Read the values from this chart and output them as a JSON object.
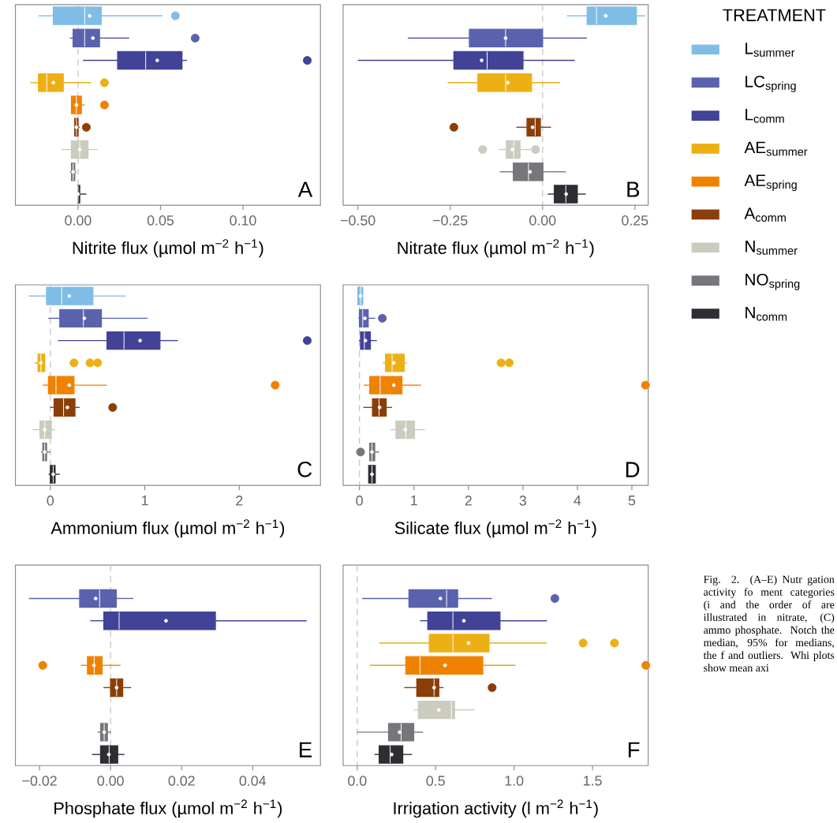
{
  "chart_data": [
    {
      "type": "box",
      "orientation": "horizontal",
      "tick_labels": "x",
      "legend": "right",
      "legend_title": "TREATMENT",
      "categories": [
        null,
        null,
        null,
        null,
        null,
        null,
        null,
        null,
        null
      ],
      "series": [
        {
          "name": "L$_{summer}$",
          "color": "#7fbde6",
          "boxes": [
            {
              "low": -0.024,
              "q1": -0.015,
              "median": 0.004,
              "q3": 0.014,
              "high": 0.051,
              "mean": 0.007,
              "outliers": [
                0.059
              ]
            },
            null,
            null,
            null,
            null,
            null,
            null,
            null,
            null
          ]
        },
        {
          "name": "LC$_{spring}$",
          "color": "#5a62ae",
          "boxes": [
            null,
            {
              "low": -0.005,
              "q1": -0.003,
              "median": 0.004,
              "q3": 0.013,
              "high": 0.031,
              "mean": 0.009,
              "outliers": [
                0.071
              ]
            },
            null,
            null,
            null,
            null,
            null,
            null,
            null
          ]
        },
        {
          "name": "L$_{comm}$",
          "color": "#424297",
          "boxes": [
            null,
            null,
            {
              "low": 0.003,
              "q1": 0.024,
              "median": 0.041,
              "q3": 0.063,
              "high": 0.066,
              "mean": 0.048,
              "outliers": [
                0.139
              ]
            },
            null,
            null,
            null,
            null,
            null,
            null
          ]
        },
        {
          "name": "AE$_{summer}$",
          "color": "#ecb015",
          "boxes": [
            null,
            null,
            null,
            {
              "low": -0.029,
              "q1": -0.024,
              "median": -0.019,
              "q3": -0.009,
              "high": 0.008,
              "mean": -0.015,
              "outliers": [
                0.016
              ]
            },
            null,
            null,
            null,
            null,
            null
          ]
        },
        {
          "name": "AE$_{spring}$",
          "color": "#ef8200",
          "boxes": [
            null,
            null,
            null,
            null,
            {
              "low": -0.004,
              "q1": -0.004,
              "median": -0.001,
              "q3": 0.002,
              "high": 0.004,
              "mean": -0.001,
              "outliers": [
                0.016
              ]
            },
            null,
            null,
            null,
            null
          ]
        },
        {
          "name": "A$_{comm}$",
          "color": "#8b3e08",
          "boxes": [
            null,
            null,
            null,
            null,
            null,
            {
              "low": -0.002,
              "q1": -0.002,
              "median": -0.001,
              "q3": 0.0,
              "high": 0.001,
              "mean": -0.001,
              "outliers": [
                0.005
              ]
            },
            null,
            null,
            null
          ]
        },
        {
          "name": "N$_{summer}$",
          "color": "#cbcbbf",
          "boxes": [
            null,
            null,
            null,
            null,
            null,
            null,
            {
              "low": -0.01,
              "q1": -0.004,
              "median": 0.001,
              "q3": 0.006,
              "high": 0.012,
              "mean": 0.001
            },
            null,
            null
          ]
        },
        {
          "name": "NO$_{spring}$",
          "color": "#77767b",
          "boxes": [
            null,
            null,
            null,
            null,
            null,
            null,
            null,
            {
              "low": -0.005,
              "q1": -0.004,
              "median": -0.003,
              "q3": -0.002,
              "high": -0.001,
              "mean": -0.003
            },
            null
          ]
        },
        {
          "name": "N$_{comm}$",
          "color": "#2e2d33",
          "boxes": [
            null,
            null,
            null,
            null,
            null,
            null,
            null,
            null,
            {
              "low": -0.001,
              "q1": 0.0,
              "median": 0.0,
              "q3": 0.001,
              "high": 0.005,
              "mean": 0.0
            }
          ]
        }
      ],
      "xlim": [
        -0.038,
        0.147
      ],
      "xticks": [
        {
          "value": 0,
          "label": "0.00"
        },
        {
          "value": 0.05,
          "label": "0.05"
        },
        {
          "value": 0.1,
          "label": "0.10"
        }
      ],
      "xlabel": "Nitrite flux (µmol m$^{−2}$ h$^{−1}$)",
      "ref_lines": [
        {
          "axis": "x",
          "value": 0,
          "line_style": "dashed",
          "color": "#c8c8c8"
        }
      ],
      "annotations": [
        "A"
      ]
    },
    {
      "type": "box",
      "orientation": "horizontal",
      "tick_labels": "x",
      "categories": [
        null,
        null,
        null,
        null,
        null,
        null,
        null,
        null,
        null
      ],
      "series": [
        {
          "color": "#7fbde6",
          "boxes": [
            {
              "low": 0.066,
              "q1": 0.121,
              "median": 0.146,
              "q3": 0.254,
              "high": 0.278,
              "mean": 0.171
            },
            null,
            null,
            null,
            null,
            null,
            null,
            null,
            null
          ]
        },
        {
          "color": "#5a62ae",
          "boxes": [
            null,
            {
              "low": -0.365,
              "q1": -0.198,
              "median": -0.1,
              "q3": 0.0,
              "high": 0.12,
              "mean": -0.1
            },
            null,
            null,
            null,
            null,
            null,
            null,
            null
          ]
        },
        {
          "color": "#424297",
          "boxes": [
            null,
            null,
            {
              "low": -0.5,
              "q1": -0.24,
              "median": -0.15,
              "q3": -0.053,
              "high": 0.087,
              "mean": -0.165
            },
            null,
            null,
            null,
            null,
            null,
            null
          ]
        },
        {
          "color": "#ecb015",
          "boxes": [
            null,
            null,
            null,
            {
              "low": -0.257,
              "q1": -0.175,
              "median": -0.1,
              "q3": -0.03,
              "high": 0.047,
              "mean": -0.094
            },
            null,
            null,
            null,
            null,
            null
          ]
        },
        {
          "color": "#8b3e08",
          "boxes": [
            null,
            null,
            null,
            null,
            null,
            {
              "low": -0.071,
              "q1": -0.042,
              "median": -0.02,
              "q3": -0.006,
              "high": 0.023,
              "mean": -0.027,
              "outliers": [
                -0.24
              ]
            },
            null,
            null,
            null
          ]
        },
        {
          "color": "#cbcbbf",
          "boxes": [
            null,
            null,
            null,
            null,
            null,
            null,
            {
              "low": -0.12,
              "q1": -0.098,
              "median": -0.078,
              "q3": -0.061,
              "high": -0.031,
              "mean": -0.082,
              "outliers": [
                -0.162,
                -0.019
              ]
            },
            null,
            null
          ]
        },
        {
          "color": "#77767b",
          "boxes": [
            null,
            null,
            null,
            null,
            null,
            null,
            null,
            {
              "low": -0.116,
              "q1": -0.079,
              "median": -0.038,
              "q3": 0.001,
              "high": 0.063,
              "mean": -0.034
            },
            null
          ]
        },
        {
          "color": "#2e2d33",
          "boxes": [
            null,
            null,
            null,
            null,
            null,
            null,
            null,
            null,
            {
              "low": 0.014,
              "q1": 0.032,
              "median": 0.063,
              "q3": 0.094,
              "high": 0.117,
              "mean": 0.064
            }
          ]
        }
      ],
      "xlim": [
        -0.54,
        0.286
      ],
      "xticks": [
        {
          "value": -0.5,
          "label": "−0.50"
        },
        {
          "value": -0.25,
          "label": "−0.25"
        },
        {
          "value": 0,
          "label": "0.00"
        },
        {
          "value": 0.25,
          "label": "0.25"
        }
      ],
      "xlabel": "Nitrate flux (µmol m$^{−2}$ h$^{−1}$)",
      "ref_lines": [
        {
          "axis": "x",
          "value": 0,
          "line_style": "dashed",
          "color": "#c8c8c8"
        }
      ],
      "annotations": [
        "B"
      ]
    },
    {
      "type": "box",
      "orientation": "horizontal",
      "tick_labels": "x",
      "categories": [
        null,
        null,
        null,
        null,
        null,
        null,
        null,
        null,
        null
      ],
      "series": [
        {
          "color": "#7fbde6",
          "boxes": [
            {
              "low": -0.23,
              "q1": -0.04,
              "median": 0.12,
              "q3": 0.45,
              "high": 0.8,
              "mean": 0.2
            },
            null,
            null,
            null,
            null,
            null,
            null,
            null,
            null
          ]
        },
        {
          "color": "#5a62ae",
          "boxes": [
            null,
            {
              "low": -0.02,
              "q1": 0.1,
              "median": 0.35,
              "q3": 0.54,
              "high": 1.03,
              "mean": 0.36
            },
            null,
            null,
            null,
            null,
            null,
            null,
            null
          ]
        },
        {
          "color": "#424297",
          "boxes": [
            null,
            null,
            {
              "low": 0.08,
              "q1": 0.6,
              "median": 0.78,
              "q3": 1.16,
              "high": 1.35,
              "mean": 0.95,
              "outliers": [
                2.72
              ]
            },
            null,
            null,
            null,
            null,
            null,
            null
          ]
        },
        {
          "color": "#ecb015",
          "boxes": [
            null,
            null,
            null,
            {
              "low": -0.17,
              "q1": -0.13,
              "median": -0.1,
              "q3": -0.06,
              "high": -0.06,
              "mean": -0.1,
              "outliers": [
                0.25,
                0.42,
                0.5
              ]
            },
            null,
            null,
            null,
            null,
            null
          ]
        },
        {
          "color": "#ef8200",
          "boxes": [
            null,
            null,
            null,
            null,
            {
              "low": -0.08,
              "q1": -0.02,
              "median": 0.06,
              "q3": 0.25,
              "high": 0.6,
              "mean": 0.2,
              "outliers": [
                2.38
              ]
            },
            null,
            null,
            null,
            null
          ]
        },
        {
          "color": "#8b3e08",
          "boxes": [
            null,
            null,
            null,
            null,
            null,
            {
              "low": 0.0,
              "q1": 0.04,
              "median": 0.14,
              "q3": 0.26,
              "high": 0.31,
              "mean": 0.18,
              "outliers": [
                0.66
              ]
            },
            null,
            null,
            null
          ]
        },
        {
          "color": "#cbcbbf",
          "boxes": [
            null,
            null,
            null,
            null,
            null,
            null,
            {
              "low": -0.19,
              "q1": -0.11,
              "median": -0.06,
              "q3": 0.01,
              "high": 0.05,
              "mean": -0.06
            },
            null,
            null
          ]
        },
        {
          "color": "#77767b",
          "boxes": [
            null,
            null,
            null,
            null,
            null,
            null,
            null,
            {
              "low": -0.1,
              "q1": -0.08,
              "median": -0.06,
              "q3": -0.04,
              "high": 0.0,
              "mean": -0.06
            },
            null
          ]
        },
        {
          "color": "#2e2d33",
          "boxes": [
            null,
            null,
            null,
            null,
            null,
            null,
            null,
            null,
            {
              "low": -0.02,
              "q1": 0.0,
              "median": 0.03,
              "q3": 0.05,
              "high": 0.1,
              "mean": 0.03
            }
          ]
        }
      ],
      "xlim": [
        -0.37,
        2.86
      ],
      "xticks": [
        0,
        1,
        2
      ],
      "xlabel": "Ammonium flux (µmol m$^{−2}$ h$^{−1}$)",
      "ref_lines": [
        {
          "axis": "x",
          "value": 0,
          "line_style": "dashed",
          "color": "#c8c8c8"
        }
      ],
      "annotations": [
        "C"
      ]
    },
    {
      "type": "box",
      "orientation": "horizontal",
      "tick_labels": "x",
      "categories": [
        null,
        null,
        null,
        null,
        null,
        null,
        null,
        null,
        null
      ],
      "series": [
        {
          "color": "#7fbde6",
          "boxes": [
            {
              "low": -0.03,
              "q1": -0.03,
              "median": 0.02,
              "q3": 0.06,
              "high": 0.06,
              "mean": 0.02
            },
            null,
            null,
            null,
            null,
            null,
            null,
            null,
            null
          ]
        },
        {
          "color": "#5a62ae",
          "boxes": [
            null,
            {
              "low": -0.02,
              "q1": 0.0,
              "median": 0.06,
              "q3": 0.16,
              "high": 0.29,
              "mean": 0.1,
              "outliers": [
                0.42
              ]
            },
            null,
            null,
            null,
            null,
            null,
            null,
            null
          ]
        },
        {
          "color": "#424297",
          "boxes": [
            null,
            null,
            {
              "low": -0.01,
              "q1": 0.02,
              "median": 0.09,
              "q3": 0.2,
              "high": 0.32,
              "mean": 0.11
            },
            null,
            null,
            null,
            null,
            null,
            null
          ]
        },
        {
          "color": "#ecb015",
          "boxes": [
            null,
            null,
            null,
            {
              "low": 0.43,
              "q1": 0.48,
              "median": 0.6,
              "q3": 0.82,
              "high": 0.87,
              "mean": 0.63,
              "outliers": [
                2.6,
                2.75
              ]
            },
            null,
            null,
            null,
            null,
            null
          ]
        },
        {
          "color": "#ef8200",
          "boxes": [
            null,
            null,
            null,
            null,
            {
              "low": 0.08,
              "q1": 0.19,
              "median": 0.38,
              "q3": 0.78,
              "high": 1.13,
              "mean": 0.63,
              "outliers": [
                5.25
              ]
            },
            null,
            null,
            null,
            null
          ]
        },
        {
          "color": "#8b3e08",
          "boxes": [
            null,
            null,
            null,
            null,
            null,
            {
              "low": 0.07,
              "q1": 0.24,
              "median": 0.36,
              "q3": 0.49,
              "high": 0.6,
              "mean": 0.37
            },
            null,
            null,
            null
          ]
        },
        {
          "color": "#cbcbbf",
          "boxes": [
            null,
            null,
            null,
            null,
            null,
            null,
            {
              "low": 0.56,
              "q1": 0.67,
              "median": 0.85,
              "q3": 1.01,
              "high": 1.2,
              "mean": 0.84
            },
            null,
            null
          ]
        },
        {
          "color": "#77767b",
          "boxes": [
            null,
            null,
            null,
            null,
            null,
            null,
            null,
            {
              "low": 0.18,
              "q1": 0.19,
              "median": 0.23,
              "q3": 0.28,
              "high": 0.36,
              "mean": 0.23,
              "outliers": [
                0.02
              ]
            },
            null
          ]
        },
        {
          "color": "#2e2d33",
          "boxes": [
            null,
            null,
            null,
            null,
            null,
            null,
            null,
            null,
            {
              "low": 0.17,
              "q1": 0.17,
              "median": 0.23,
              "q3": 0.29,
              "high": 0.29,
              "mean": 0.23
            }
          ]
        }
      ],
      "xlim": [
        -0.3,
        5.3
      ],
      "xticks": [
        0,
        1,
        2,
        3,
        4,
        5
      ],
      "xlabel": "Silicate flux (µmol m$^{−2}$ h$^{−1}$)",
      "ref_lines": [
        {
          "axis": "x",
          "value": 0,
          "line_style": "dashed",
          "color": "#c8c8c8"
        }
      ],
      "annotations": [
        "D"
      ]
    },
    {
      "type": "box",
      "orientation": "horizontal",
      "tick_labels": "x",
      "categories": [
        null,
        null,
        null,
        null,
        null,
        null,
        null,
        null,
        null
      ],
      "series": [
        {
          "color": "#5a62ae",
          "boxes": [
            null,
            {
              "low": -0.023,
              "q1": -0.0087,
              "median": -0.0031,
              "q3": 0.0016,
              "high": 0.0064,
              "mean": -0.0042
            },
            null,
            null,
            null,
            null,
            null,
            null,
            null
          ]
        },
        {
          "color": "#424297",
          "boxes": [
            null,
            null,
            {
              "low": -0.0057,
              "q1": -0.0019,
              "median": 0.0024,
              "q3": 0.0295,
              "high": 0.0552,
              "mean": 0.0156
            },
            null,
            null,
            null,
            null,
            null,
            null
          ]
        },
        {
          "color": "#ef8200",
          "boxes": [
            null,
            null,
            null,
            null,
            {
              "low": -0.0084,
              "q1": -0.0065,
              "median": -0.0046,
              "q3": -0.0024,
              "high": 0.0028,
              "mean": -0.0047,
              "outliers": [
                -0.0191
              ]
            },
            null,
            null,
            null,
            null
          ]
        },
        {
          "color": "#8b3e08",
          "boxes": [
            null,
            null,
            null,
            null,
            null,
            {
              "low": -0.002,
              "q1": 0.0,
              "median": 0.0017,
              "q3": 0.0034,
              "high": 0.0058,
              "mean": 0.0017
            },
            null,
            null,
            null
          ]
        },
        {
          "color": "#77767b",
          "boxes": [
            null,
            null,
            null,
            null,
            null,
            null,
            null,
            {
              "low": -0.0037,
              "q1": -0.0028,
              "median": -0.0018,
              "q3": -0.0009,
              "high": 0.0001,
              "mean": -0.0018
            },
            null
          ]
        },
        {
          "color": "#2e2d33",
          "boxes": [
            null,
            null,
            null,
            null,
            null,
            null,
            null,
            null,
            {
              "low": -0.0052,
              "q1": -0.0028,
              "median": -0.0004,
              "q3": 0.002,
              "high": 0.0039,
              "mean": -0.0005
            }
          ]
        }
      ],
      "xlim": [
        -0.0268,
        0.0591
      ],
      "xticks": [
        {
          "value": -0.02,
          "label": "−0.02"
        },
        {
          "value": 0,
          "label": "0.00"
        },
        {
          "value": 0.02,
          "label": "0.02"
        },
        {
          "value": 0.04,
          "label": "0.04"
        }
      ],
      "xlabel": "Phosphate flux (µmol m$^{−2}$ h$^{−1}$)",
      "ref_lines": [
        {
          "axis": "x",
          "value": 0,
          "line_style": "dashed",
          "color": "#c8c8c8"
        }
      ],
      "annotations": [
        "E"
      ]
    },
    {
      "type": "box",
      "orientation": "horizontal",
      "tick_labels": "x",
      "categories": [
        null,
        null,
        null,
        null,
        null,
        null,
        null,
        null,
        null
      ],
      "series": [
        {
          "color": "#5a62ae",
          "boxes": [
            null,
            {
              "low": 0.03,
              "q1": 0.33,
              "median": 0.57,
              "q3": 0.64,
              "high": 0.86,
              "mean": 0.53,
              "outliers": [
                1.26
              ]
            },
            null,
            null,
            null,
            null,
            null,
            null,
            null
          ]
        },
        {
          "color": "#424297",
          "boxes": [
            null,
            null,
            {
              "low": 0.4,
              "q1": 0.45,
              "median": 0.61,
              "q3": 0.91,
              "high": 1.21,
              "mean": 0.68
            },
            null,
            null,
            null,
            null,
            null,
            null
          ]
        },
        {
          "color": "#ecb015",
          "boxes": [
            null,
            null,
            null,
            {
              "low": 0.14,
              "q1": 0.46,
              "median": 0.61,
              "q3": 0.84,
              "high": 1.21,
              "mean": 0.71,
              "outliers": [
                1.44,
                1.64
              ]
            },
            null,
            null,
            null,
            null,
            null
          ]
        },
        {
          "color": "#ef8200",
          "boxes": [
            null,
            null,
            null,
            null,
            {
              "low": 0.08,
              "q1": 0.31,
              "median": 0.4,
              "q3": 0.8,
              "high": 1.01,
              "mean": 0.56,
              "outliers": [
                1.84
              ]
            },
            null,
            null,
            null,
            null
          ]
        },
        {
          "color": "#8b3e08",
          "boxes": [
            null,
            null,
            null,
            null,
            null,
            {
              "low": 0.3,
              "q1": 0.38,
              "median": 0.49,
              "q3": 0.52,
              "high": 0.55,
              "mean": 0.49,
              "outliers": [
                0.86
              ]
            },
            null,
            null,
            null
          ]
        },
        {
          "color": "#cbcbbf",
          "boxes": [
            null,
            null,
            null,
            null,
            null,
            null,
            {
              "low": 0.36,
              "q1": 0.39,
              "median": 0.6,
              "q3": 0.62,
              "high": 0.75,
              "mean": 0.52
            },
            null,
            null
          ]
        },
        {
          "color": "#77767b",
          "boxes": [
            null,
            null,
            null,
            null,
            null,
            null,
            null,
            {
              "low": 0.0,
              "q1": 0.2,
              "median": 0.28,
              "q3": 0.36,
              "high": 0.42,
              "mean": 0.27
            },
            null
          ]
        },
        {
          "color": "#2e2d33",
          "boxes": [
            null,
            null,
            null,
            null,
            null,
            null,
            null,
            null,
            {
              "low": 0.11,
              "q1": 0.14,
              "median": 0.21,
              "q3": 0.29,
              "high": 0.35,
              "mean": 0.22
            }
          ]
        }
      ],
      "xlim": [
        -0.09,
        1.855
      ],
      "xticks": [
        {
          "value": 0,
          "label": "0.0"
        },
        {
          "value": 0.5,
          "label": "0.5"
        },
        {
          "value": 1,
          "label": "1.0"
        },
        {
          "value": 1.5,
          "label": "1.5"
        }
      ],
      "xlabel": "Irrigation activity (l m$^{−2}$ h$^{−1}$)",
      "ref_lines": [
        {
          "axis": "x",
          "value": 0,
          "line_style": "dashed",
          "color": "#c8c8c8"
        }
      ],
      "annotations": [
        "F",
        "Fig. 2. (A–E) Nutr gation activity fo ment categories (i and the order of are illustrated in nitrate, (C) ammo phosphate. Notch the median, 95% for medians, the f and outliers. Whi plots show mean axi"
      ]
    }
  ]
}
